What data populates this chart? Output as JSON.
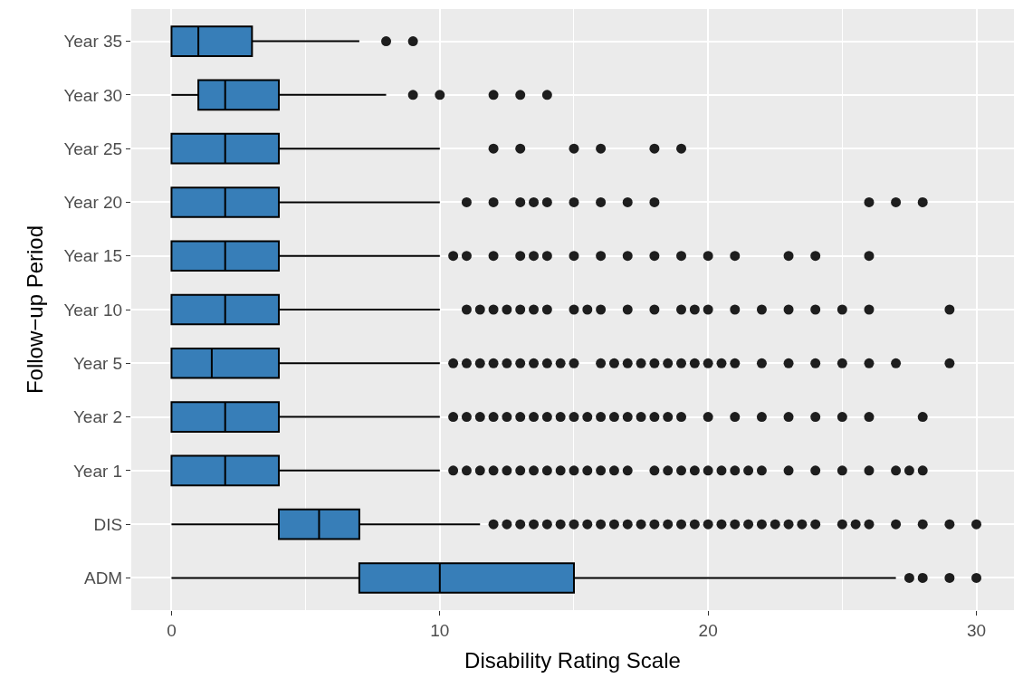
{
  "chart_data": {
    "type": "box",
    "orientation": "horizontal",
    "xlabel": "Disability Rating Scale",
    "ylabel": "Follow−up Period",
    "categories": [
      "Year 35",
      "Year 30",
      "Year 25",
      "Year 20",
      "Year 15",
      "Year 10",
      "Year 5",
      "Year 2",
      "Year 1",
      "DIS",
      "ADM"
    ],
    "color": "#377eb8",
    "xlim": [
      -1.5,
      31.4
    ],
    "xticks": [
      0,
      10,
      20,
      30
    ],
    "grid": true,
    "boxes": [
      {
        "low": 0,
        "q1": 0,
        "median": 1,
        "q3": 3,
        "high": 7,
        "outliers": [
          8,
          9
        ]
      },
      {
        "low": 0,
        "q1": 1,
        "median": 2,
        "q3": 4,
        "high": 8,
        "outliers": [
          9,
          10,
          12,
          13,
          14
        ]
      },
      {
        "low": 0,
        "q1": 0,
        "median": 2,
        "q3": 4,
        "high": 10,
        "outliers": [
          12,
          13,
          15,
          16,
          18,
          19
        ]
      },
      {
        "low": 0,
        "q1": 0,
        "median": 2,
        "q3": 4,
        "high": 10,
        "outliers": [
          11,
          12,
          13,
          13.5,
          14,
          15,
          16,
          17,
          18,
          26,
          27,
          28
        ]
      },
      {
        "low": 0,
        "q1": 0,
        "median": 2,
        "q3": 4,
        "high": 10,
        "outliers": [
          10.5,
          11,
          12,
          13,
          13.5,
          14,
          15,
          16,
          17,
          18,
          19,
          20,
          21,
          23,
          24,
          26
        ]
      },
      {
        "low": 0,
        "q1": 0,
        "median": 2,
        "q3": 4,
        "high": 10,
        "outliers": [
          11,
          11.5,
          12,
          12.5,
          13,
          13.5,
          14,
          15,
          15.5,
          16,
          17,
          18,
          19,
          19.5,
          20,
          21,
          22,
          23,
          24,
          25,
          26,
          29
        ]
      },
      {
        "low": 0,
        "q1": 0,
        "median": 1.5,
        "q3": 4,
        "high": 10,
        "outliers": [
          10.5,
          11,
          11.5,
          12,
          12.5,
          13,
          13.5,
          14,
          14.5,
          15,
          16,
          16.5,
          17,
          17.5,
          18,
          18.5,
          19,
          19.5,
          20,
          20.5,
          21,
          22,
          23,
          24,
          25,
          26,
          27,
          29
        ]
      },
      {
        "low": 0,
        "q1": 0,
        "median": 2,
        "q3": 4,
        "high": 10,
        "outliers": [
          10.5,
          11,
          11.5,
          12,
          12.5,
          13,
          13.5,
          14,
          14.5,
          15,
          15.5,
          16,
          16.5,
          17,
          17.5,
          18,
          18.5,
          19,
          20,
          21,
          22,
          23,
          24,
          25,
          26,
          28
        ]
      },
      {
        "low": 0,
        "q1": 0,
        "median": 2,
        "q3": 4,
        "high": 10,
        "outliers": [
          10.5,
          11,
          11.5,
          12,
          12.5,
          13,
          13.5,
          14,
          14.5,
          15,
          15.5,
          16,
          16.5,
          17,
          18,
          18.5,
          19,
          19.5,
          20,
          20.5,
          21,
          21.5,
          22,
          23,
          24,
          25,
          26,
          27,
          27.5,
          28
        ]
      },
      {
        "low": 0,
        "q1": 4,
        "median": 5.5,
        "q3": 7,
        "high": 11.5,
        "outliers": [
          12,
          12.5,
          13,
          13.5,
          14,
          14.5,
          15,
          15.5,
          16,
          16.5,
          17,
          17.5,
          18,
          18.5,
          19,
          19.5,
          20,
          20.5,
          21,
          21.5,
          22,
          22.5,
          23,
          23.5,
          24,
          25,
          25.5,
          26,
          27,
          28,
          29,
          30
        ]
      },
      {
        "low": 0,
        "q1": 7,
        "median": 10,
        "q3": 15,
        "high": 27,
        "outliers": [
          27.5,
          28,
          29,
          30
        ]
      }
    ]
  }
}
